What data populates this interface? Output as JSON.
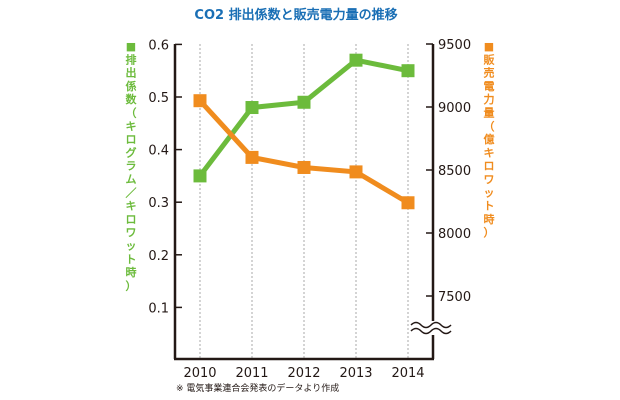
{
  "chart_data": {
    "type": "line",
    "title": "CO2 排出係数と販売電力量の推移",
    "note": "※ 電気事業連合会発表のデータより作成",
    "categories": [
      "2010",
      "2011",
      "2012",
      "2013",
      "2014"
    ],
    "grid": "vertical dotted",
    "axes": {
      "left": {
        "label": "■排出係数（キログラム／キロワット時）",
        "ylim": [
          0,
          0.6
        ],
        "ticks": [
          "0.1",
          "0.2",
          "0.3",
          "0.4",
          "0.5",
          "0.6"
        ],
        "color": "#6cbb3c"
      },
      "right": {
        "label": "■販売電力量（億キロワット時）",
        "ylim": [
          7250,
          9500
        ],
        "ticks": [
          "7500",
          "8000",
          "8500",
          "9000",
          "9500"
        ],
        "axis_break": true,
        "color": "#f08c1e"
      }
    },
    "series": [
      {
        "name": "排出係数",
        "axis": "left",
        "color": "#6cbb3c",
        "values": [
          0.35,
          0.48,
          0.49,
          0.57,
          0.55
        ]
      },
      {
        "name": "販売電力量",
        "axis": "right",
        "color": "#f08c1e",
        "values": [
          9050,
          8600,
          8520,
          8485,
          8240
        ]
      }
    ]
  }
}
